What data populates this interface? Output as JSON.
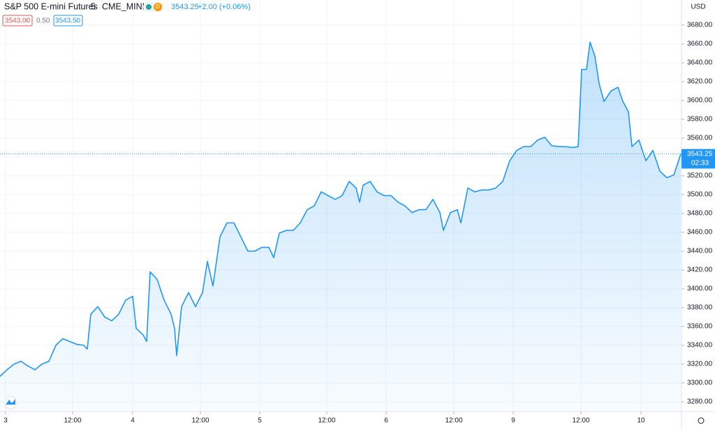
{
  "header": {
    "symbol": "S&P 500 E-mini Futures",
    "interval": "5",
    "exchange": "CME_MINI",
    "badge": "D",
    "last": "3543.25",
    "change": "+2.00 (+0.06%)",
    "bid": "3543.00",
    "spread": "0.50",
    "ask": "3543.50",
    "currency": "USD"
  },
  "chart_data": {
    "type": "area",
    "color": "#2196f3",
    "grid": true,
    "x": [
      0,
      10,
      20,
      30,
      40,
      50,
      60,
      70,
      80,
      90,
      100,
      110,
      120,
      125,
      130,
      140,
      150,
      160,
      170,
      180,
      190,
      195,
      205,
      210,
      215,
      225,
      235,
      245,
      250,
      253,
      260,
      270,
      280,
      290,
      297,
      305,
      315,
      325,
      335,
      345,
      355,
      365,
      375,
      385,
      392,
      400,
      410,
      420,
      430,
      440,
      450,
      460,
      470,
      480,
      490,
      500,
      510,
      515,
      520,
      530,
      540,
      550,
      560,
      570,
      580,
      590,
      600,
      610,
      620,
      630,
      635,
      645,
      655,
      660,
      670,
      680,
      690,
      700,
      710,
      720,
      730,
      740,
      750,
      760,
      770,
      780,
      790,
      800,
      810,
      820,
      828,
      833,
      840,
      845,
      852,
      858,
      865,
      875,
      885,
      892,
      900,
      905,
      915,
      925,
      935,
      945,
      955,
      965,
      975
    ],
    "values": [
      3307,
      3314,
      3320,
      3323,
      3318,
      3314,
      3320,
      3323,
      3340,
      3347,
      3344,
      3341,
      3340,
      3336,
      3373,
      3381,
      3370,
      3366,
      3373,
      3388,
      3392,
      3358,
      3351,
      3344,
      3418,
      3410,
      3388,
      3373,
      3358,
      3329,
      3381,
      3396,
      3381,
      3396,
      3429,
      3403,
      3455,
      3470,
      3470,
      3455,
      3440,
      3440,
      3444,
      3444,
      3433,
      3459,
      3462,
      3462,
      3470,
      3484,
      3488,
      3503,
      3499,
      3495,
      3499,
      3514,
      3507,
      3492,
      3510,
      3514,
      3503,
      3499,
      3499,
      3492,
      3488,
      3481,
      3484,
      3484,
      3495,
      3481,
      3462,
      3481,
      3484,
      3470,
      3507,
      3503,
      3505,
      3505,
      3507,
      3514,
      3536,
      3547,
      3551,
      3551,
      3558,
      3561,
      3552,
      3551,
      3551,
      3550,
      3551,
      3633,
      3633,
      3662,
      3647,
      3618,
      3599,
      3610,
      3614,
      3599,
      3588,
      3551,
      3558,
      3536,
      3547,
      3525,
      3518,
      3521,
      3543.25
    ],
    "xlim": [
      0,
      976
    ],
    "xticks": [
      {
        "value": 8,
        "label": "3"
      },
      {
        "value": 104,
        "label": "12:00"
      },
      {
        "value": 190,
        "label": "4"
      },
      {
        "value": 287,
        "label": "12:00"
      },
      {
        "value": 372,
        "label": "5"
      },
      {
        "value": 468,
        "label": "12:00"
      },
      {
        "value": 553,
        "label": "6"
      },
      {
        "value": 650,
        "label": "12:00"
      },
      {
        "value": 735,
        "label": "9"
      },
      {
        "value": 832,
        "label": "12:00"
      },
      {
        "value": 918,
        "label": "10"
      }
    ],
    "ylim": [
      3269.6,
      3706.7
    ],
    "yticks": [
      {
        "value": 3280,
        "label": "3280.00"
      },
      {
        "value": 3300,
        "label": "3300.00"
      },
      {
        "value": 3320,
        "label": "3320.00"
      },
      {
        "value": 3340,
        "label": "3340.00"
      },
      {
        "value": 3360,
        "label": "3360.00"
      },
      {
        "value": 3380,
        "label": "3380.00"
      },
      {
        "value": 3400,
        "label": "3400.00"
      },
      {
        "value": 3420,
        "label": "3420.00"
      },
      {
        "value": 3440,
        "label": "3440.00"
      },
      {
        "value": 3460,
        "label": "3460.00"
      },
      {
        "value": 3480,
        "label": "3480.00"
      },
      {
        "value": 3500,
        "label": "3500.00"
      },
      {
        "value": 3520,
        "label": "3520.00"
      },
      {
        "value": 3540,
        "label": "3540.00"
      },
      {
        "value": 3560,
        "label": "3560.00"
      },
      {
        "value": 3580,
        "label": "3580.00"
      },
      {
        "value": 3600,
        "label": "3600.00"
      },
      {
        "value": 3620,
        "label": "3620.00"
      },
      {
        "value": 3640,
        "label": "3640.00"
      },
      {
        "value": 3660,
        "label": "3660.00"
      },
      {
        "value": 3680,
        "label": "3680.00"
      }
    ],
    "last_price": {
      "value": 3543.25,
      "label": "3543.25"
    },
    "countdown": "02:33"
  }
}
